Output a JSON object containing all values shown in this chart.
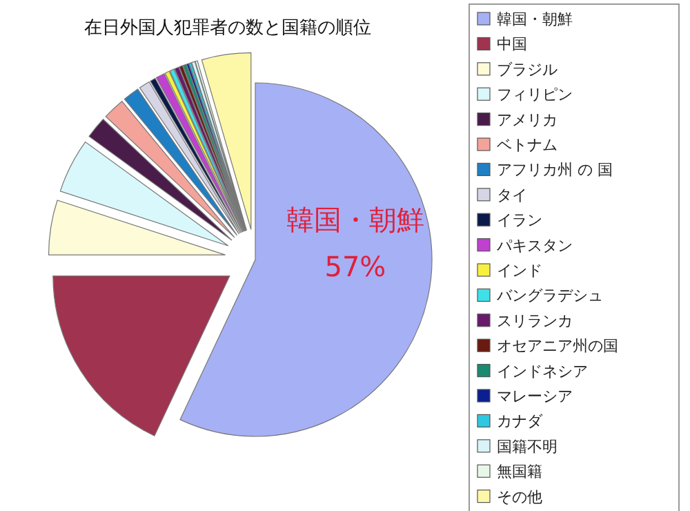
{
  "chart_data": {
    "type": "pie",
    "title": "在日外国人犯罪者の数と国籍の順位",
    "categories": [
      "韓国・朝鮮",
      "中国",
      "ブラジル",
      "フィリピン",
      "アメリカ",
      "ベトナム",
      "アフリカ州 の 国",
      "タイ",
      "イラン",
      "パキスタン",
      "インド",
      "バングラデシュ",
      "スリランカ",
      "オセアニア州の国",
      "インドネシア",
      "マレーシア",
      "カナダ",
      "国籍不明",
      "無国籍",
      "その他"
    ],
    "values": [
      57,
      18,
      5,
      5,
      2,
      2,
      1.5,
      1,
      0.5,
      0.8,
      0.4,
      0.4,
      0.4,
      0.3,
      0.3,
      0.2,
      0.2,
      0.3,
      0.2,
      4.5
    ],
    "colors": [
      "#a6b0f5",
      "#a0334f",
      "#fdfbd8",
      "#d9f8fb",
      "#4a1c4a",
      "#f4a39a",
      "#1f7fc4",
      "#d5d5e5",
      "#0a1a4a",
      "#c040d0",
      "#f8f040",
      "#40e0e8",
      "#6a1a6a",
      "#6a1a10",
      "#1a8a70",
      "#0a2090",
      "#30c8e0",
      "#d8f4f8",
      "#e8f8e8",
      "#fdf8a8"
    ],
    "value_labels": [
      "57%",
      null,
      null,
      null,
      null,
      null,
      null,
      null,
      null,
      null,
      null,
      null,
      null,
      null,
      null,
      null,
      null,
      null,
      null,
      null
    ],
    "legend": "right"
  }
}
